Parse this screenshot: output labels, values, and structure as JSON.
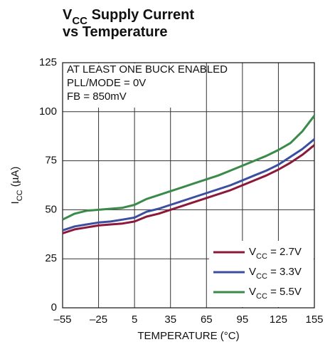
{
  "chart_data": {
    "type": "line",
    "title": [
      [
        "V",
        "CC",
        " Supply Current"
      ],
      [
        "vs Temperature"
      ]
    ],
    "ylabel": [
      "I",
      "CC",
      " (µA)"
    ],
    "xlabel": "TEMPERATURE (°C)",
    "annotations": [
      "AT LEAST ONE BUCK ENABLED",
      "PLL/MODE = 0V",
      "FB = 850mV"
    ],
    "x": [
      -55,
      -45,
      -35,
      -25,
      -15,
      -5,
      5,
      15,
      25,
      35,
      45,
      55,
      65,
      75,
      85,
      95,
      105,
      115,
      125,
      135,
      145,
      155
    ],
    "series": [
      {
        "name": [
          "V",
          "CC",
          " = 2.7V"
        ],
        "color": "#8b1a3a",
        "values": [
          38,
          40,
          41,
          42,
          42.5,
          43,
          44,
          46.5,
          48,
          50,
          52,
          54,
          56,
          58,
          60,
          62.5,
          65,
          67.5,
          70.5,
          74,
          78,
          83
        ]
      },
      {
        "name": [
          "V",
          "CC",
          " = 3.3V"
        ],
        "color": "#3b4ea0",
        "values": [
          39.5,
          41.5,
          42.5,
          43.5,
          44,
          45,
          46,
          49,
          50.5,
          52.5,
          54.5,
          56.5,
          58.5,
          60.5,
          62.5,
          65,
          67.5,
          70,
          73,
          77,
          81,
          86
        ]
      },
      {
        "name": [
          "V",
          "CC",
          " = 5.5V"
        ],
        "color": "#3a8a4a",
        "values": [
          45,
          48,
          49.5,
          50,
          50.5,
          51,
          52.5,
          55.5,
          57.5,
          59.5,
          61.5,
          63.5,
          65.5,
          67.5,
          70,
          72.5,
          75,
          77.5,
          80.5,
          84,
          90,
          98
        ]
      }
    ],
    "xlim": [
      -55,
      155
    ],
    "xticks": [
      {
        "value": -55,
        "label": "–55"
      },
      {
        "value": -25,
        "label": "–25"
      },
      5,
      35,
      65,
      95,
      125,
      155
    ],
    "ylim": [
      0,
      125
    ],
    "yticks": [
      0,
      25,
      50,
      75,
      100,
      125
    ],
    "grid": true,
    "legend": "lower right"
  }
}
